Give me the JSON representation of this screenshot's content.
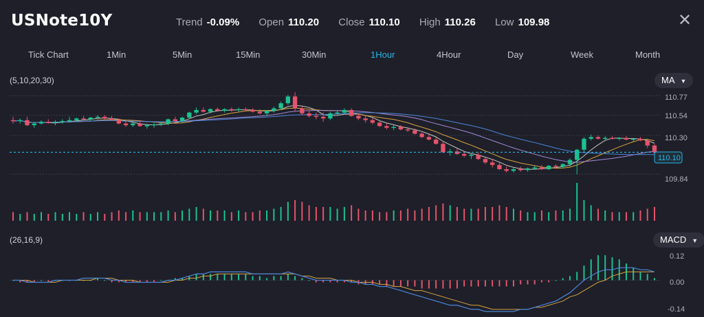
{
  "header": {
    "symbol": "USNote10Y",
    "trend_label": "Trend",
    "trend_value": "-0.09%",
    "open_label": "Open",
    "open_value": "110.20",
    "close_label": "Close",
    "close_value": "110.10",
    "high_label": "High",
    "high_value": "110.26",
    "low_label": "Low",
    "low_value": "109.98"
  },
  "tabs": [
    {
      "label": "Tick Chart",
      "active": false
    },
    {
      "label": "1Min",
      "active": false
    },
    {
      "label": "5Min",
      "active": false
    },
    {
      "label": "15Min",
      "active": false
    },
    {
      "label": "30Min",
      "active": false
    },
    {
      "label": "1Hour",
      "active": true
    },
    {
      "label": "4Hour",
      "active": false
    },
    {
      "label": "Day",
      "active": false
    },
    {
      "label": "Week",
      "active": false
    },
    {
      "label": "Month",
      "active": false
    }
  ],
  "main_chart": {
    "params": "(5,10,20,30)",
    "indicator": "MA",
    "price_labels": [
      "110.77",
      "110.54",
      "110.30",
      "109.84"
    ],
    "current_price": "110.10"
  },
  "macd_chart": {
    "params": "(26,16,9)",
    "indicator": "MACD",
    "labels": [
      "0.12",
      "0.00",
      "-0.14"
    ]
  },
  "colors": {
    "background": "#1e1f29",
    "up": "#1bc28f",
    "down": "#e4546b",
    "accent": "#27b6e6"
  },
  "chart_data": {
    "type": "candlestick",
    "price_ylim": [
      109.64,
      110.86
    ],
    "close_price": 110.1,
    "candles": [
      [
        110.48,
        110.52,
        110.44,
        110.47
      ],
      [
        110.47,
        110.5,
        110.44,
        110.48
      ],
      [
        110.48,
        110.52,
        110.41,
        110.42
      ],
      [
        110.42,
        110.46,
        110.39,
        110.44
      ],
      [
        110.44,
        110.48,
        110.43,
        110.46
      ],
      [
        110.46,
        110.49,
        110.44,
        110.45
      ],
      [
        110.45,
        110.48,
        110.42,
        110.46
      ],
      [
        110.46,
        110.49,
        110.44,
        110.47
      ],
      [
        110.47,
        110.52,
        110.45,
        110.48
      ],
      [
        110.48,
        110.51,
        110.46,
        110.5
      ],
      [
        110.5,
        110.53,
        110.48,
        110.49
      ],
      [
        110.49,
        110.52,
        110.47,
        110.51
      ],
      [
        110.51,
        110.54,
        110.49,
        110.52
      ],
      [
        110.52,
        110.54,
        110.48,
        110.5
      ],
      [
        110.5,
        110.53,
        110.47,
        110.48
      ],
      [
        110.48,
        110.5,
        110.43,
        110.44
      ],
      [
        110.44,
        110.47,
        110.4,
        110.42
      ],
      [
        110.42,
        110.46,
        110.4,
        110.44
      ],
      [
        110.44,
        110.48,
        110.4,
        110.41
      ],
      [
        110.41,
        110.44,
        110.38,
        110.42
      ],
      [
        110.42,
        110.45,
        110.39,
        110.43
      ],
      [
        110.43,
        110.46,
        110.41,
        110.44
      ],
      [
        110.44,
        110.5,
        110.42,
        110.49
      ],
      [
        110.49,
        110.52,
        110.45,
        110.47
      ],
      [
        110.47,
        110.52,
        110.45,
        110.51
      ],
      [
        110.51,
        110.58,
        110.49,
        110.57
      ],
      [
        110.57,
        110.63,
        110.55,
        110.6
      ],
      [
        110.6,
        110.63,
        110.57,
        110.58
      ],
      [
        110.58,
        110.62,
        110.56,
        110.61
      ],
      [
        110.61,
        110.63,
        110.58,
        110.59
      ],
      [
        110.59,
        110.62,
        110.57,
        110.61
      ],
      [
        110.61,
        110.63,
        110.58,
        110.6
      ],
      [
        110.6,
        110.63,
        110.58,
        110.61
      ],
      [
        110.61,
        110.63,
        110.59,
        110.6
      ],
      [
        110.6,
        110.62,
        110.57,
        110.58
      ],
      [
        110.58,
        110.61,
        110.55,
        110.56
      ],
      [
        110.56,
        110.6,
        110.53,
        110.59
      ],
      [
        110.59,
        110.64,
        110.57,
        110.62
      ],
      [
        110.62,
        110.7,
        110.6,
        110.68
      ],
      [
        110.68,
        110.78,
        110.66,
        110.76
      ],
      [
        110.76,
        110.81,
        110.58,
        110.62
      ],
      [
        110.62,
        110.65,
        110.54,
        110.56
      ],
      [
        110.56,
        110.59,
        110.51,
        110.53
      ],
      [
        110.53,
        110.57,
        110.49,
        110.52
      ],
      [
        110.52,
        110.57,
        110.46,
        110.5
      ],
      [
        110.5,
        110.58,
        110.48,
        110.56
      ],
      [
        110.56,
        110.6,
        110.53,
        110.57
      ],
      [
        110.57,
        110.62,
        110.55,
        110.6
      ],
      [
        110.6,
        110.62,
        110.52,
        110.53
      ],
      [
        110.53,
        110.56,
        110.48,
        110.5
      ],
      [
        110.5,
        110.53,
        110.45,
        110.48
      ],
      [
        110.48,
        110.51,
        110.43,
        110.45
      ],
      [
        110.45,
        110.48,
        110.4,
        110.41
      ],
      [
        110.41,
        110.44,
        110.37,
        110.39
      ],
      [
        110.39,
        110.42,
        110.36,
        110.4
      ],
      [
        110.4,
        110.42,
        110.36,
        110.37
      ],
      [
        110.37,
        110.4,
        110.34,
        110.36
      ],
      [
        110.36,
        110.38,
        110.31,
        110.32
      ],
      [
        110.32,
        110.35,
        110.27,
        110.28
      ],
      [
        110.28,
        110.31,
        110.24,
        110.25
      ],
      [
        110.25,
        110.28,
        110.19,
        110.2
      ],
      [
        110.2,
        110.23,
        110.09,
        110.1
      ],
      [
        110.1,
        110.14,
        110.06,
        110.11
      ],
      [
        110.11,
        110.14,
        110.07,
        110.08
      ],
      [
        110.08,
        110.11,
        110.04,
        110.06
      ],
      [
        110.06,
        110.09,
        110.02,
        110.07
      ],
      [
        110.07,
        110.1,
        110.01,
        110.02
      ],
      [
        110.02,
        110.05,
        109.96,
        109.98
      ],
      [
        109.98,
        110.02,
        109.92,
        109.95
      ],
      [
        109.95,
        109.98,
        109.89,
        109.9
      ],
      [
        109.9,
        109.93,
        109.86,
        109.88
      ],
      [
        109.88,
        109.92,
        109.86,
        109.9
      ],
      [
        109.9,
        109.93,
        109.87,
        109.89
      ],
      [
        109.89,
        109.92,
        109.87,
        109.91
      ],
      [
        109.91,
        109.94,
        109.89,
        109.92
      ],
      [
        109.92,
        109.95,
        109.89,
        109.9
      ],
      [
        109.9,
        109.95,
        109.89,
        109.94
      ],
      [
        109.94,
        109.96,
        109.91,
        109.93
      ],
      [
        109.93,
        109.97,
        109.91,
        109.96
      ],
      [
        109.96,
        110.03,
        109.93,
        110.01
      ],
      [
        110.01,
        110.14,
        109.84,
        110.13
      ],
      [
        110.13,
        110.28,
        110.1,
        110.26
      ],
      [
        110.26,
        110.31,
        110.24,
        110.28
      ],
      [
        110.28,
        110.3,
        110.25,
        110.26
      ],
      [
        110.26,
        110.29,
        110.24,
        110.27
      ],
      [
        110.27,
        110.29,
        110.25,
        110.26
      ],
      [
        110.26,
        110.28,
        110.24,
        110.27
      ],
      [
        110.27,
        110.29,
        110.24,
        110.25
      ],
      [
        110.25,
        110.27,
        110.23,
        110.26
      ],
      [
        110.26,
        110.28,
        110.23,
        110.24
      ],
      [
        110.24,
        110.26,
        110.15,
        110.18
      ],
      [
        110.18,
        110.2,
        110.05,
        110.1
      ]
    ],
    "volumes": [
      5,
      4,
      5,
      4,
      5,
      4,
      5,
      4,
      5,
      4,
      5,
      4,
      5,
      4,
      5,
      6,
      5,
      6,
      5,
      5,
      5,
      5,
      6,
      5,
      6,
      7,
      8,
      7,
      6,
      6,
      6,
      5,
      6,
      5,
      5,
      6,
      6,
      7,
      8,
      11,
      12,
      11,
      9,
      8,
      8,
      8,
      7,
      8,
      9,
      7,
      6,
      6,
      5,
      5,
      6,
      6,
      7,
      6,
      7,
      8,
      9,
      10,
      9,
      8,
      7,
      7,
      7,
      8,
      8,
      9,
      8,
      7,
      6,
      5,
      5,
      6,
      5,
      6,
      6,
      7,
      22,
      12,
      9,
      7,
      6,
      5,
      5,
      5,
      5,
      6,
      7,
      8
    ],
    "macd_ylim": [
      -0.16,
      0.15
    ],
    "macd_hist": [
      0.0,
      -0.01,
      -0.01,
      -0.01,
      0.0,
      -0.01,
      0.0,
      0.0,
      0.0,
      0.0,
      0.0,
      0.0,
      0.01,
      0.0,
      -0.01,
      -0.01,
      -0.01,
      -0.01,
      -0.01,
      -0.01,
      -0.01,
      0.0,
      0.0,
      0.01,
      0.01,
      0.02,
      0.03,
      0.03,
      0.03,
      0.03,
      0.03,
      0.03,
      0.03,
      0.03,
      0.02,
      0.02,
      0.01,
      0.02,
      0.02,
      0.03,
      0.02,
      0.01,
      0.0,
      -0.01,
      -0.01,
      -0.01,
      -0.01,
      -0.01,
      -0.01,
      -0.02,
      -0.02,
      -0.02,
      -0.02,
      -0.03,
      -0.03,
      -0.03,
      -0.03,
      -0.03,
      -0.04,
      -0.04,
      -0.04,
      -0.04,
      -0.04,
      -0.04,
      -0.03,
      -0.03,
      -0.03,
      -0.03,
      -0.03,
      -0.03,
      -0.03,
      -0.03,
      -0.02,
      -0.02,
      -0.02,
      -0.01,
      -0.01,
      0.0,
      0.01,
      0.02,
      0.04,
      0.07,
      0.1,
      0.12,
      0.12,
      0.11,
      0.1,
      0.08,
      0.06,
      0.04,
      0.03,
      0.01
    ],
    "macd_line": [
      0.0,
      0.0,
      -0.01,
      -0.01,
      -0.01,
      -0.01,
      0.0,
      0.0,
      0.0,
      0.0,
      0.01,
      0.01,
      0.01,
      0.01,
      0.0,
      0.0,
      -0.01,
      -0.01,
      -0.01,
      -0.01,
      -0.01,
      -0.01,
      0.0,
      0.0,
      0.01,
      0.02,
      0.03,
      0.03,
      0.04,
      0.04,
      0.04,
      0.04,
      0.04,
      0.04,
      0.03,
      0.03,
      0.03,
      0.03,
      0.03,
      0.04,
      0.03,
      0.02,
      0.01,
      0.0,
      0.0,
      0.0,
      0.0,
      0.0,
      -0.01,
      -0.01,
      -0.02,
      -0.02,
      -0.03,
      -0.03,
      -0.04,
      -0.05,
      -0.06,
      -0.07,
      -0.08,
      -0.09,
      -0.1,
      -0.11,
      -0.12,
      -0.12,
      -0.13,
      -0.14,
      -0.14,
      -0.15,
      -0.15,
      -0.15,
      -0.15,
      -0.15,
      -0.14,
      -0.14,
      -0.13,
      -0.12,
      -0.11,
      -0.1,
      -0.08,
      -0.06,
      -0.03,
      0.0,
      0.02,
      0.04,
      0.05,
      0.05,
      0.06,
      0.06,
      0.06,
      0.05,
      0.05,
      0.04
    ],
    "signal_line": [
      0.0,
      0.0,
      0.0,
      -0.01,
      -0.01,
      -0.01,
      -0.01,
      0.0,
      0.0,
      0.0,
      0.0,
      0.0,
      0.01,
      0.01,
      0.01,
      0.0,
      0.0,
      0.0,
      -0.01,
      -0.01,
      -0.01,
      -0.01,
      -0.01,
      0.0,
      0.0,
      0.01,
      0.01,
      0.02,
      0.02,
      0.03,
      0.03,
      0.03,
      0.03,
      0.03,
      0.03,
      0.03,
      0.03,
      0.03,
      0.03,
      0.03,
      0.03,
      0.02,
      0.02,
      0.01,
      0.01,
      0.01,
      0.0,
      0.0,
      0.0,
      -0.01,
      -0.01,
      -0.01,
      -0.02,
      -0.02,
      -0.03,
      -0.03,
      -0.04,
      -0.05,
      -0.05,
      -0.06,
      -0.07,
      -0.08,
      -0.09,
      -0.1,
      -0.11,
      -0.12,
      -0.12,
      -0.13,
      -0.14,
      -0.14,
      -0.14,
      -0.14,
      -0.14,
      -0.14,
      -0.13,
      -0.13,
      -0.12,
      -0.11,
      -0.1,
      -0.08,
      -0.07,
      -0.05,
      -0.03,
      -0.01,
      0.0,
      0.02,
      0.03,
      0.04,
      0.04,
      0.04,
      0.04,
      0.04
    ]
  }
}
